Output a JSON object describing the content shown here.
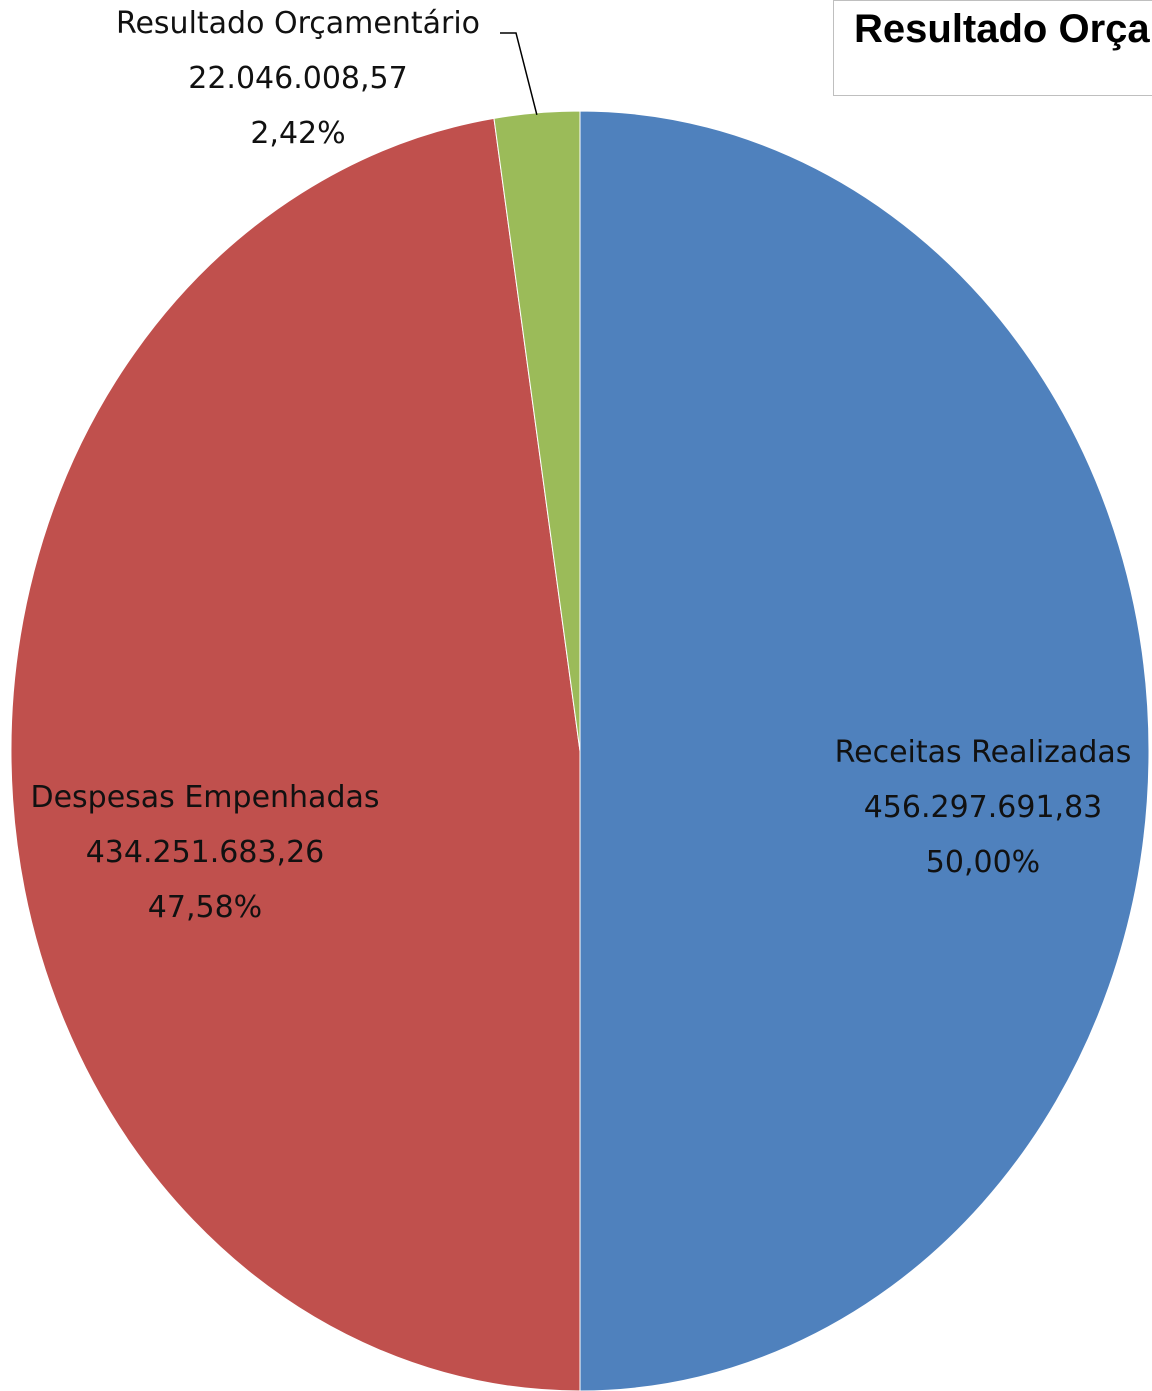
{
  "chart_data": {
    "type": "pie",
    "title": "Resultado Orça",
    "slices": [
      {
        "label": "Receitas Realizadas",
        "value": 456297691.83,
        "value_text": "456.297.691,83",
        "percent_text": "50,00%",
        "color": "#4f81bd"
      },
      {
        "label": "Despesas Empenhadas",
        "value": 434251683.26,
        "value_text": "434.251.683,26",
        "percent_text": "47,58%",
        "color": "#c0504d"
      },
      {
        "label": "Resultado Orçamentário",
        "value": 22046008.57,
        "value_text": "22.046.008,57",
        "percent_text": "2,42%",
        "color": "#9bbb59"
      }
    ],
    "start_angle_deg": 0,
    "direction": "clockwise",
    "legend": "none"
  }
}
